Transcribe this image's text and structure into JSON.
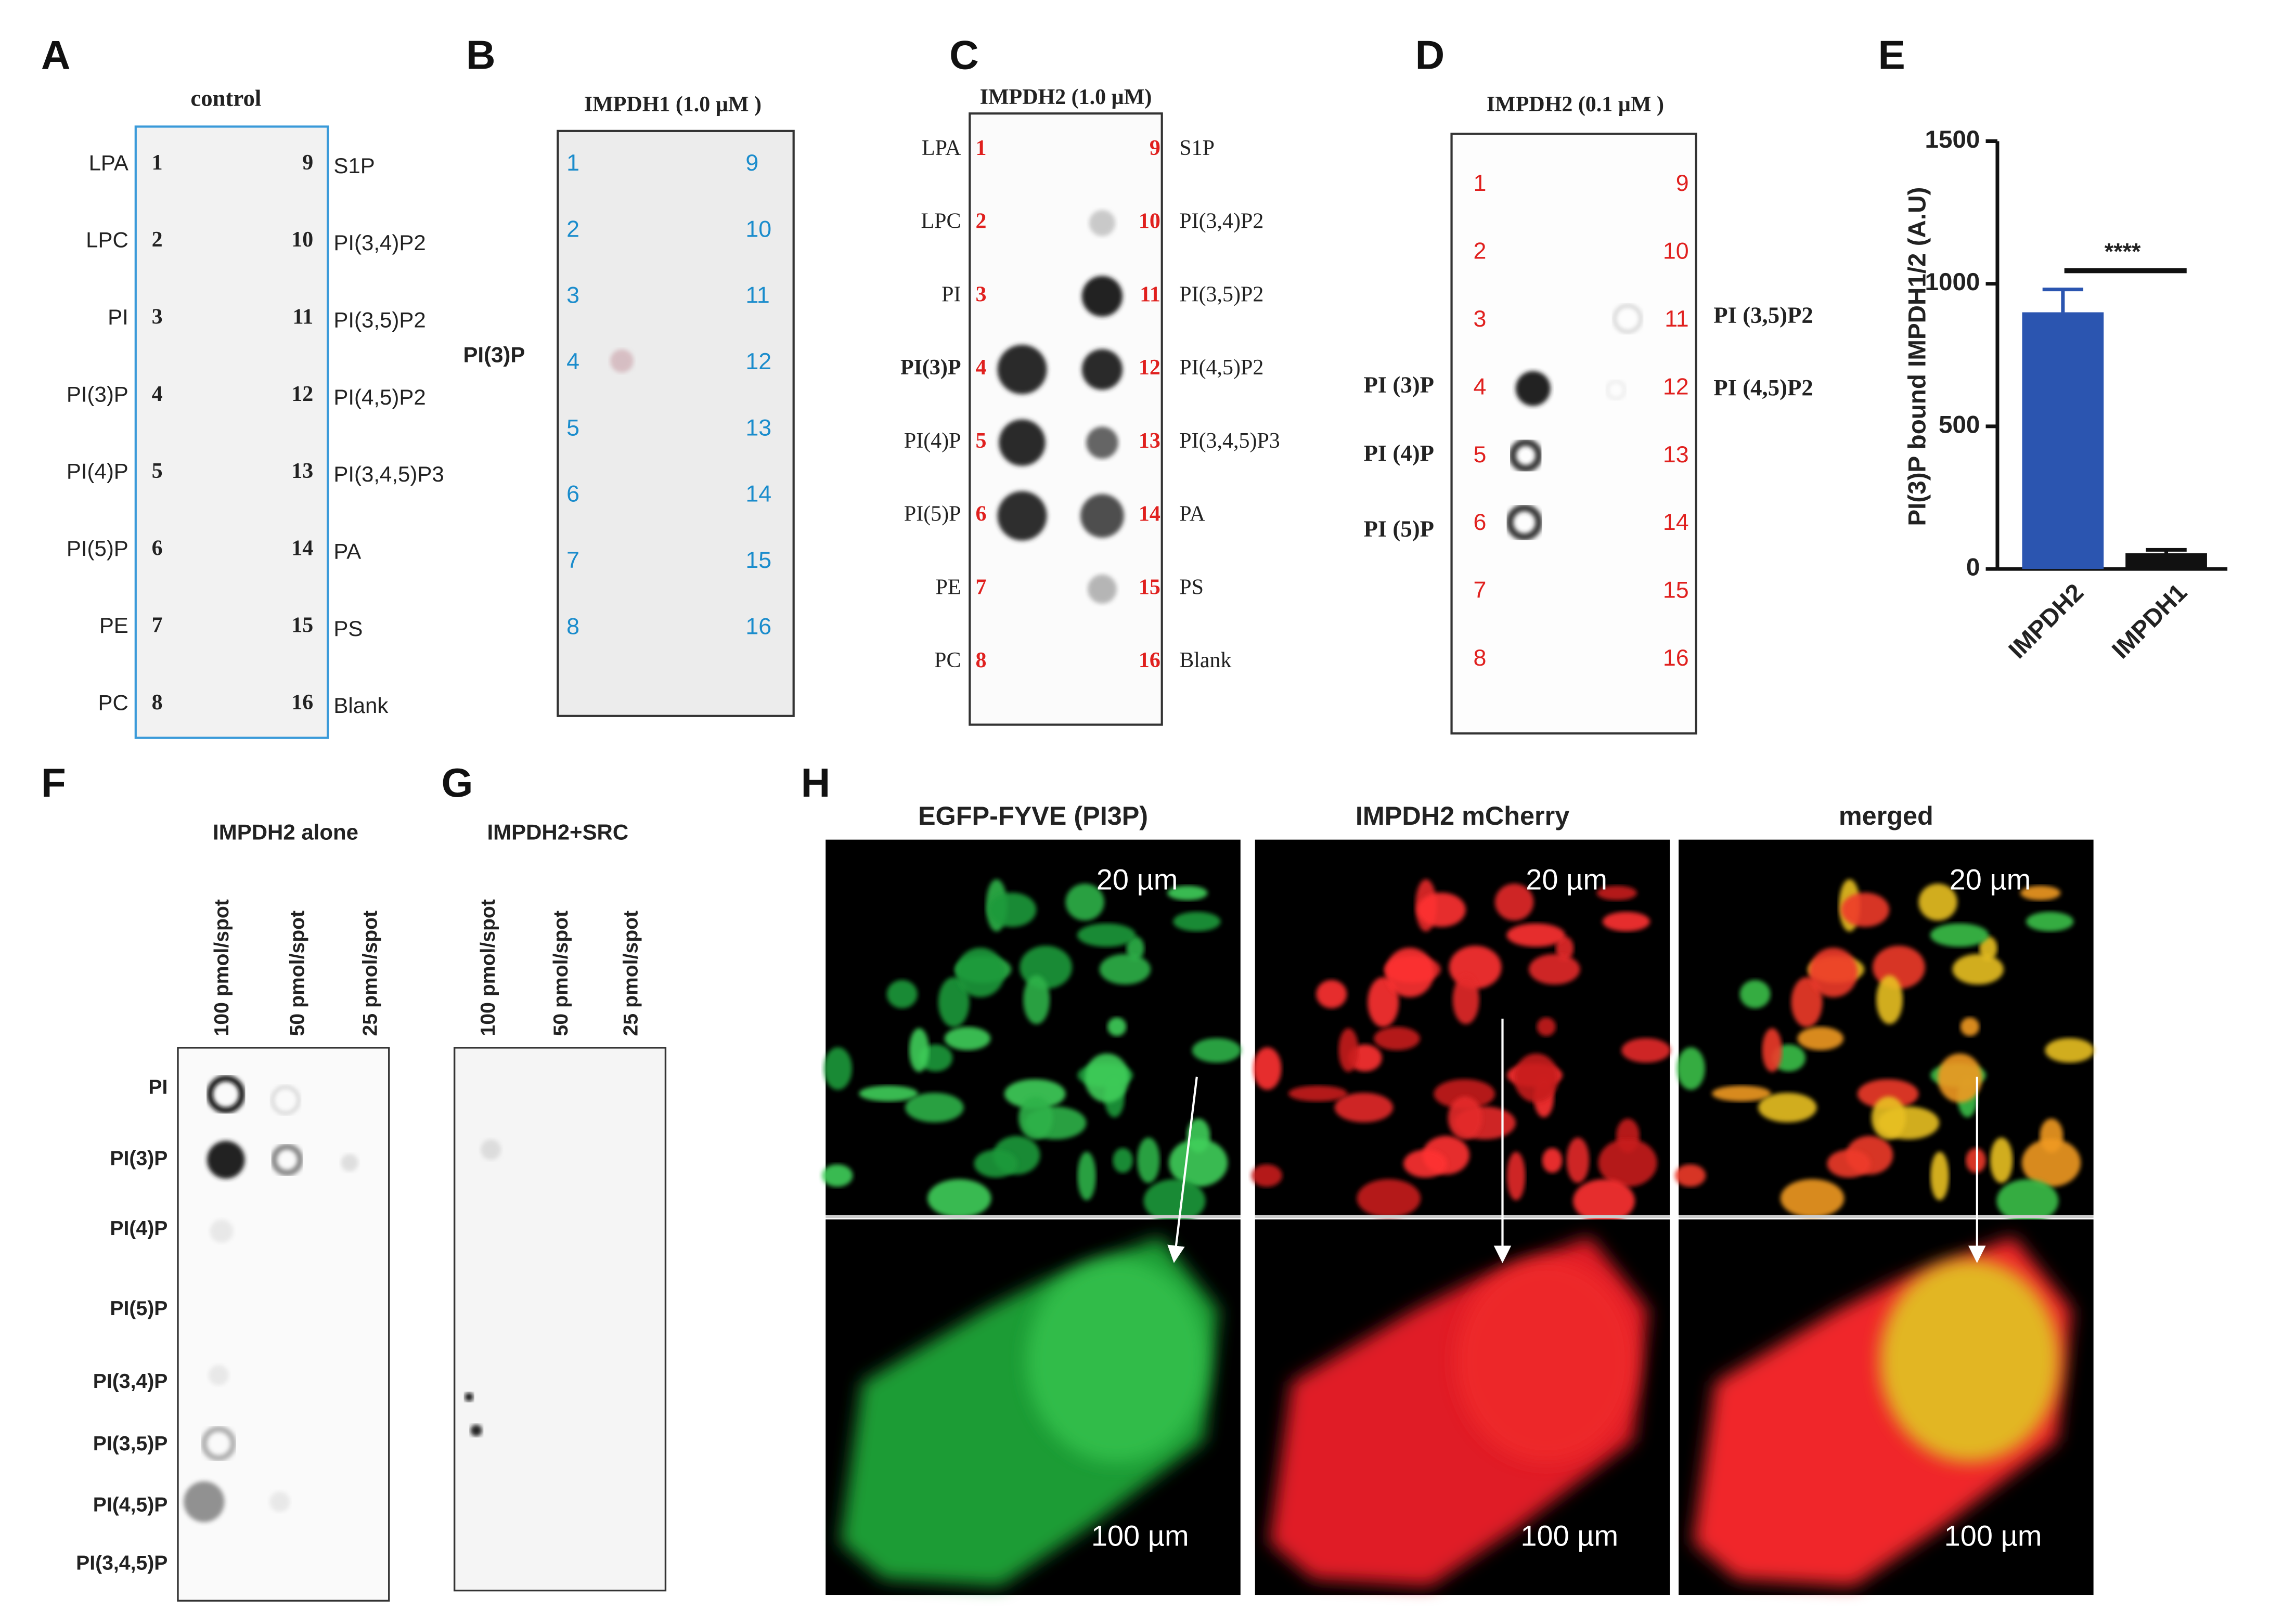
{
  "panels": {
    "A": {
      "letter": "A",
      "title": "control",
      "left_labels": [
        "LPA",
        "LPC",
        "PI",
        "PI(3)P",
        "PI(4)P",
        "PI(5)P",
        "PE",
        "PC"
      ],
      "left_numbers": [
        1,
        2,
        3,
        4,
        5,
        6,
        7,
        8
      ],
      "right_numbers": [
        9,
        10,
        11,
        12,
        13,
        14,
        15,
        16
      ],
      "right_labels": [
        "S1P",
        "PI(3,4)P2",
        "PI(3,5)P2",
        "PI(4,5)P2",
        "PI(3,4,5)P3",
        "PA",
        "PS",
        "Blank"
      ]
    },
    "B": {
      "letter": "B",
      "title": "IMPDH1 (1.0 µM )",
      "side_label": "PI(3)P",
      "left_numbers": [
        1,
        2,
        3,
        4,
        5,
        6,
        7,
        8
      ],
      "right_numbers": [
        9,
        10,
        11,
        12,
        13,
        14,
        15,
        16
      ]
    },
    "C": {
      "letter": "C",
      "title": "IMPDH2 (1.0 µM)",
      "left_labels": [
        "LPA",
        "LPC",
        "PI",
        "PI(3)P",
        "PI(4)P",
        "PI(5)P",
        "PE",
        "PC"
      ],
      "left_numbers": [
        1,
        2,
        3,
        4,
        5,
        6,
        7,
        8
      ],
      "right_numbers": [
        9,
        10,
        11,
        12,
        13,
        14,
        15,
        16
      ],
      "right_labels": [
        "S1P",
        "PI(3,4)P2",
        "PI(3,5)P2",
        "PI(4,5)P2",
        "PI(3,4,5)P3",
        "PA",
        "PS",
        "Blank"
      ]
    },
    "D": {
      "letter": "D",
      "title": "IMPDH2 (0.1 µM )",
      "left_numbers": [
        1,
        2,
        3,
        4,
        5,
        6,
        7,
        8
      ],
      "right_numbers": [
        9,
        10,
        11,
        12,
        13,
        14,
        15,
        16
      ],
      "left_labels": [
        "PI (3)P",
        "PI (4)P",
        "PI (5)P"
      ],
      "right_labels": [
        "PI (3,5)P2",
        "PI (4,5)P2"
      ]
    },
    "F": {
      "letter": "F",
      "title": "IMPDH2 alone",
      "columns": [
        "100 pmol/spot",
        "50 pmol/spot",
        "25 pmol/spot"
      ],
      "rows": [
        "PI",
        "PI(3)P",
        "PI(4)P",
        "PI(5)P",
        "PI(3,4)P",
        "PI(3,5)P",
        "PI(4,5)P",
        "PI(3,4,5)P"
      ]
    },
    "G": {
      "letter": "G",
      "title": "IMPDH2+SRC",
      "columns": [
        "100 pmol/spot",
        "50 pmol/spot",
        "25 pmol/spot"
      ]
    },
    "H": {
      "letter": "H",
      "titles": [
        "EGFP-FYVE (PI3P)",
        "IMPDH2 mCherry",
        "merged"
      ],
      "scale_top": [
        "20 µm",
        "20 µm",
        "20 µm"
      ],
      "scale_bottom": [
        "100 µm",
        "100 µm",
        "100 µm"
      ]
    }
  },
  "chart_data": {
    "type": "bar",
    "letter": "E",
    "y_label": "PI(3)P bound IMPDH1/2 (A.U)",
    "categories": [
      "IMPDH2",
      "IMPDH1"
    ],
    "values": [
      900,
      55
    ],
    "errors": [
      80,
      12
    ],
    "colors": [
      "#2b55b0",
      "#111111"
    ],
    "ylim": [
      0,
      1500
    ],
    "yticks": [
      0,
      500,
      1000,
      1500
    ],
    "annotation": "****"
  }
}
